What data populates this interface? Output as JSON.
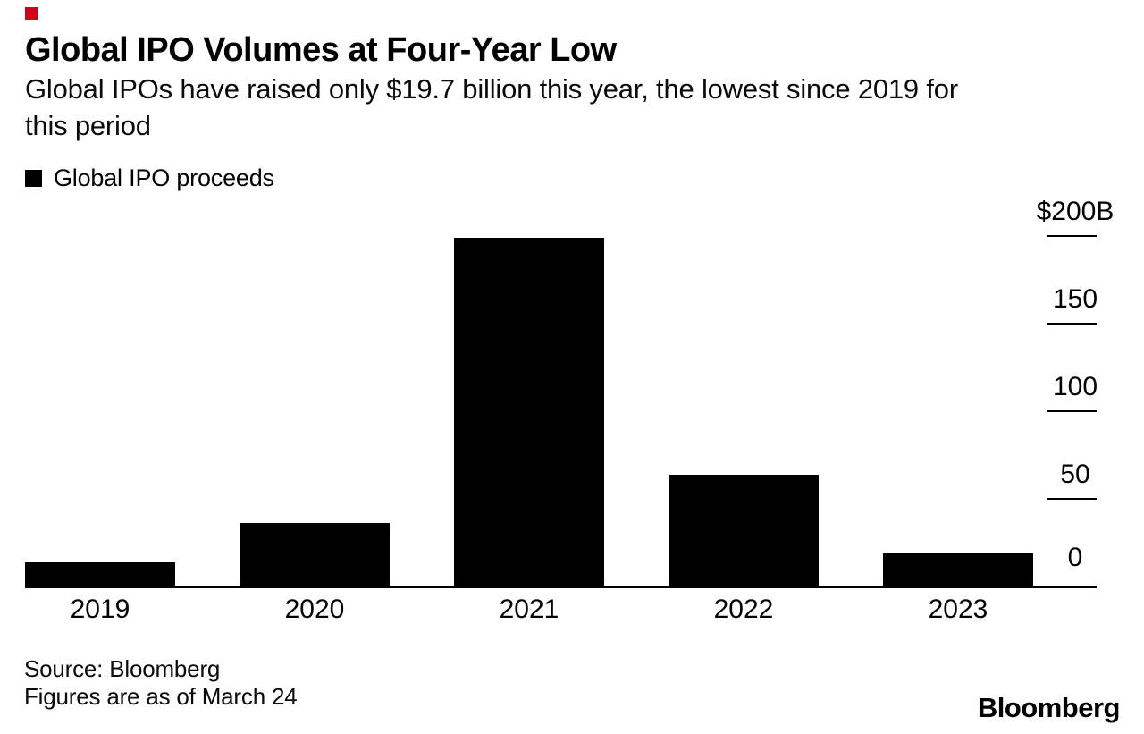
{
  "brand": {
    "mark_color": "#d0021b"
  },
  "chart_data": {
    "type": "bar",
    "title": "Global IPO Volumes at Four-Year Low",
    "subtitle": "Global IPOs have raised only $19.7 billion this year, the lowest since 2019 for this period",
    "subtitle_lines": [
      "Global IPOs have raised only $19.7 billion this year, the lowest since 2019 for",
      "this period"
    ],
    "legend": [
      {
        "label": "Global IPO proceeds",
        "color": "#000000"
      }
    ],
    "categories": [
      "2019",
      "2020",
      "2021",
      "2022",
      "2023"
    ],
    "series": [
      {
        "name": "Global IPO proceeds",
        "values": [
          15,
          37,
          200,
          65,
          19.7
        ]
      }
    ],
    "unit": "billions USD",
    "ylim": [
      0,
      200
    ],
    "yticks": [
      {
        "value": 200,
        "label": "$200B"
      },
      {
        "value": 150,
        "label": "150"
      },
      {
        "value": 100,
        "label": "100"
      },
      {
        "value": 50,
        "label": "50"
      },
      {
        "value": 0,
        "label": "0"
      }
    ],
    "axis_side": "right",
    "grid": false,
    "bar_color": "#000000",
    "background_color": "#ffffff"
  },
  "footer": {
    "source": "Source: Bloomberg",
    "note": "Figures are as of March 24",
    "logo_text": "Bloomberg"
  }
}
